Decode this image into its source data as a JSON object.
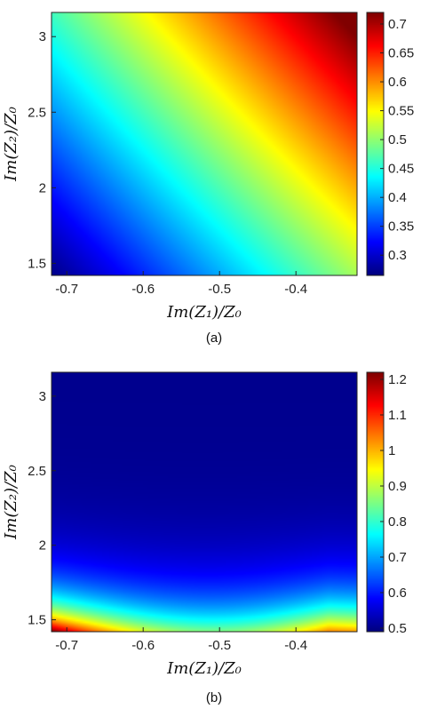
{
  "chart_data": [
    {
      "type": "heatmap",
      "caption": "(a)",
      "xlabel": "Im(Z₁)/Z₀",
      "ylabel": "Im(Z₂)/Z₀",
      "xlim": [
        -0.72,
        -0.32
      ],
      "ylim": [
        1.42,
        3.16
      ],
      "xticks": [
        -0.7,
        -0.6,
        -0.5,
        -0.4
      ],
      "xtick_labels": [
        "-0.7",
        "-0.6",
        "-0.5",
        "-0.4"
      ],
      "yticks": [
        1.5,
        2,
        2.5,
        3
      ],
      "ytick_labels": [
        "1.5",
        "2",
        "2.5",
        "3"
      ],
      "colorbar": {
        "clim": [
          0.265,
          0.72
        ],
        "ticks": [
          0.3,
          0.35,
          0.4,
          0.45,
          0.5,
          0.55,
          0.6,
          0.65,
          0.7
        ],
        "tick_labels": [
          "0.3",
          "0.35",
          "0.4",
          "0.45",
          "0.5",
          "0.55",
          "0.6",
          "0.65",
          "0.7"
        ]
      },
      "colormap": "jet",
      "corner_values": {
        "bottom_left": 0.27,
        "bottom_right": 0.52,
        "top_left": 0.53,
        "top_right": 0.72
      }
    },
    {
      "type": "heatmap",
      "caption": "(b)",
      "xlabel": "Im(Z₁)/Z₀",
      "ylabel": "Im(Z₂)/Z₀",
      "xlim": [
        -0.72,
        -0.32
      ],
      "ylim": [
        1.42,
        3.16
      ],
      "xticks": [
        -0.7,
        -0.6,
        -0.5,
        -0.4
      ],
      "xtick_labels": [
        "-0.7",
        "-0.6",
        "-0.5",
        "-0.4"
      ],
      "yticks": [
        1.5,
        2,
        2.5,
        3
      ],
      "ytick_labels": [
        "1.5",
        "2",
        "2.5",
        "3"
      ],
      "colorbar": {
        "clim": [
          0.49,
          1.22
        ],
        "ticks": [
          0.5,
          0.6,
          0.7,
          0.8,
          0.9,
          1.0,
          1.1,
          1.2
        ],
        "tick_labels": [
          "0.5",
          "0.6",
          "0.7",
          "0.8",
          "0.9",
          "1",
          "1.1",
          "1.2"
        ]
      },
      "colormap": "jet",
      "corner_values": {
        "bottom_left": 1.21,
        "bottom_right": 1.0,
        "top_left": 0.5,
        "top_right": 0.5
      }
    }
  ]
}
